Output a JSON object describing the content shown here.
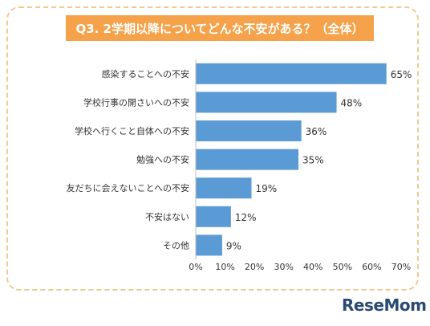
{
  "chart_data": {
    "type": "bar",
    "orientation": "horizontal",
    "title": "Q3. 2学期以降についてどんな不安がある？（全体）",
    "categories": [
      "感染することへの不安",
      "学校行事の開さいへの不安",
      "学校へ行くこと自体への不安",
      "勉強への不安",
      "友だちに会えないことへの不安",
      "不安はない",
      "その他"
    ],
    "values": [
      65,
      48,
      36,
      35,
      19,
      12,
      9
    ],
    "value_labels": [
      "65%",
      "48%",
      "36%",
      "35%",
      "19%",
      "12%",
      "9%"
    ],
    "xticks": [
      "0%",
      "10%",
      "20%",
      "30%",
      "40%",
      "50%",
      "60%",
      "70%"
    ],
    "xlim": [
      0,
      70
    ],
    "grid": false,
    "bar_color": "#5b9bd5",
    "title_bg_color": "#f5a24a",
    "frame_color": "#f2c893"
  },
  "logo": {
    "text": "ReseMom"
  }
}
